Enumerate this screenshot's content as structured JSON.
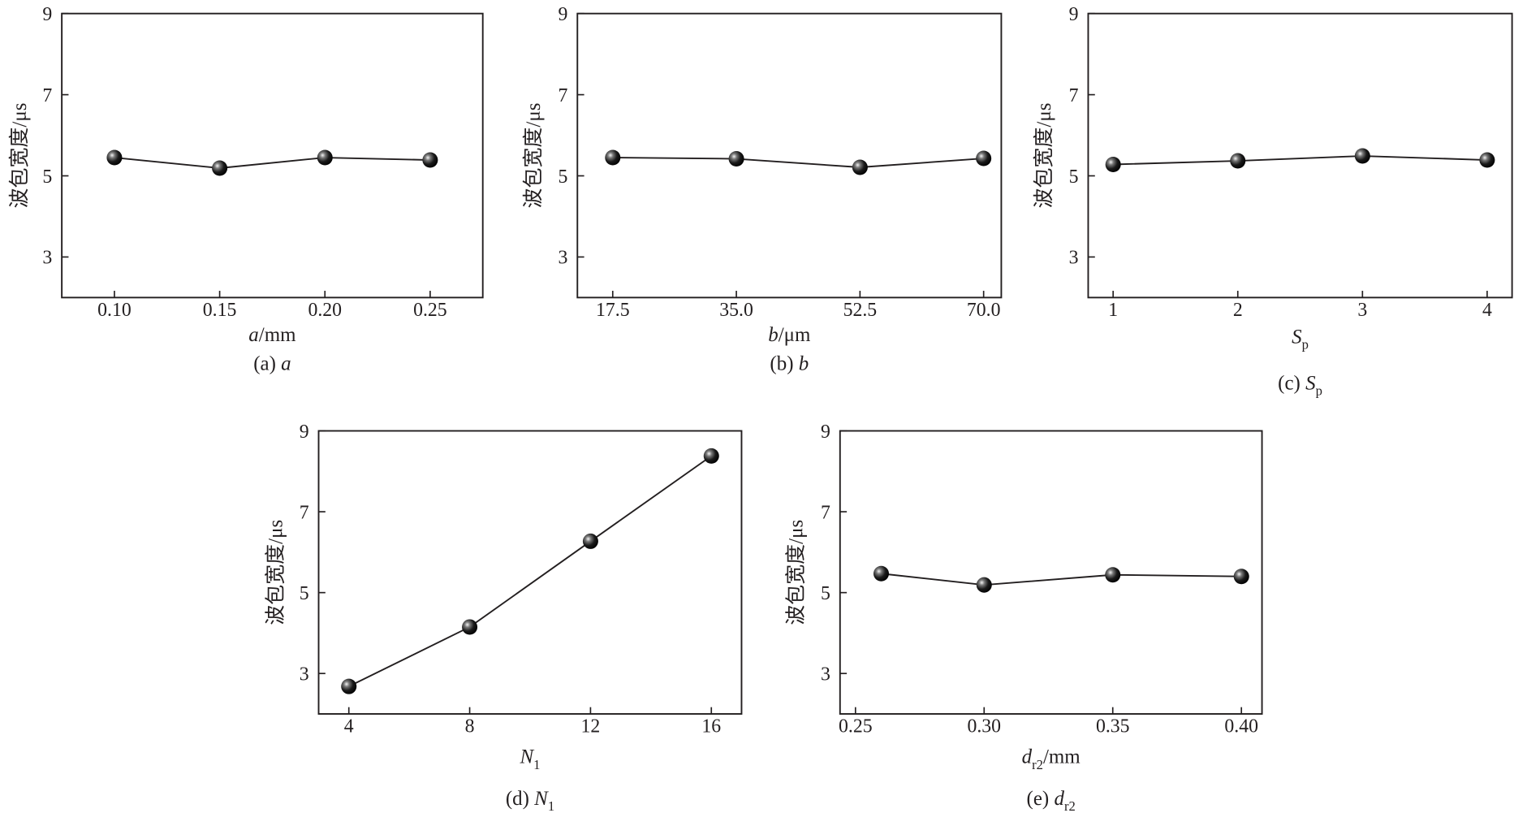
{
  "chart_data": [
    {
      "id": "a",
      "type": "line",
      "x": [
        0.1,
        0.15,
        0.2,
        0.25
      ],
      "xtick_labels": [
        "0.10",
        "0.15",
        "0.20",
        "0.25"
      ],
      "xticks": [
        0.1,
        0.15,
        0.2,
        0.25
      ],
      "values": [
        5.45,
        5.19,
        5.45,
        5.39
      ],
      "xlim": [
        0.075,
        0.275
      ],
      "ylim": [
        2,
        9
      ],
      "yticks": [
        3,
        5,
        7,
        9
      ],
      "ytick_labels": [
        "3",
        "5",
        "7",
        "9"
      ],
      "ylabel": "波包宽度/μs",
      "xlabel": {
        "var": "a",
        "sub": "",
        "unit": "/mm"
      },
      "caption": {
        "prefix": "(a) ",
        "var": "a",
        "sub": ""
      }
    },
    {
      "id": "b",
      "type": "line",
      "x": [
        17.5,
        35.0,
        52.5,
        70.0
      ],
      "xtick_labels": [
        "17.5",
        "35.0",
        "52.5",
        "70.0"
      ],
      "xticks": [
        17.5,
        35.0,
        52.5,
        70.0
      ],
      "values": [
        5.45,
        5.42,
        5.21,
        5.43
      ],
      "xlim": [
        12.5,
        72.5
      ],
      "ylim": [
        2,
        9
      ],
      "yticks": [
        3,
        5,
        7,
        9
      ],
      "ytick_labels": [
        "3",
        "5",
        "7",
        "9"
      ],
      "ylabel": "波包宽度/μs",
      "xlabel": {
        "var": "b",
        "sub": "",
        "unit": "/μm"
      },
      "caption": {
        "prefix": "(b) ",
        "var": "b",
        "sub": ""
      }
    },
    {
      "id": "c",
      "type": "line",
      "x": [
        1,
        2,
        3,
        4
      ],
      "xtick_labels": [
        "1",
        "2",
        "3",
        "4"
      ],
      "xticks": [
        1,
        2,
        3,
        4
      ],
      "values": [
        5.28,
        5.37,
        5.49,
        5.39
      ],
      "xlim": [
        0.8,
        4.2
      ],
      "ylim": [
        2,
        9
      ],
      "yticks": [
        3,
        5,
        7,
        9
      ],
      "ytick_labels": [
        "3",
        "5",
        "7",
        "9"
      ],
      "ylabel": "波包宽度/μs",
      "xlabel": {
        "var": "S",
        "sub": "p",
        "unit": ""
      },
      "caption": {
        "prefix": "(c) ",
        "var": "S",
        "sub": "p"
      }
    },
    {
      "id": "d",
      "type": "line",
      "x": [
        4,
        8,
        12,
        16
      ],
      "xtick_labels": [
        "4",
        "8",
        "12",
        "16"
      ],
      "xticks": [
        4,
        8,
        12,
        16
      ],
      "values": [
        2.68,
        4.15,
        6.27,
        8.38
      ],
      "xlim": [
        3,
        17
      ],
      "ylim": [
        2,
        9
      ],
      "yticks": [
        3,
        5,
        7,
        9
      ],
      "ytick_labels": [
        "3",
        "5",
        "7",
        "9"
      ],
      "ylabel": "波包宽度/μs",
      "xlabel": {
        "var": "N",
        "sub": "1",
        "unit": ""
      },
      "caption": {
        "prefix": "(d) ",
        "var": "N",
        "sub": "1"
      }
    },
    {
      "id": "e",
      "type": "line",
      "x": [
        0.26,
        0.3,
        0.35,
        0.4
      ],
      "xtick_labels": [
        "0.25",
        "0.30",
        "0.35",
        "0.40"
      ],
      "xticks": [
        0.25,
        0.3,
        0.35,
        0.4
      ],
      "values": [
        5.47,
        5.19,
        5.44,
        5.4
      ],
      "xlim": [
        0.244,
        0.408
      ],
      "ylim": [
        2,
        9
      ],
      "yticks": [
        3,
        5,
        7,
        9
      ],
      "ytick_labels": [
        "3",
        "5",
        "7",
        "9"
      ],
      "ylabel": "波包宽度/μs",
      "xlabel": {
        "var": "d",
        "sub": "r2",
        "unit": "/mm"
      },
      "caption": {
        "prefix": "(e) ",
        "var": "d",
        "sub": "r2"
      }
    }
  ],
  "colors": {
    "line": "#231f20",
    "marker_dark": "#111111",
    "marker_light": "#f4f4f4"
  }
}
